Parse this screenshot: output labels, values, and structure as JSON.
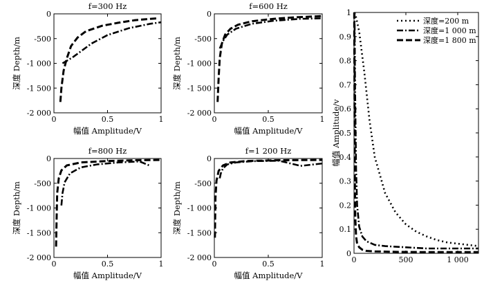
{
  "chart_data": [
    {
      "type": "line",
      "title": "f=300 Hz",
      "xlabel": "幅值 Amplitude/V",
      "ylabel": "深度 Depth/m",
      "xlim": [
        0,
        1
      ],
      "ylim": [
        -2000,
        0
      ],
      "xticks": [
        "0",
        "0.5",
        "1"
      ],
      "yticks": [
        "0",
        "-500",
        "-1 000",
        "-1 500",
        "-2 000"
      ],
      "series": [
        {
          "style": "dash",
          "x": [
            0.06,
            0.07,
            0.09,
            0.12,
            0.16,
            0.22,
            0.3,
            0.45,
            0.6,
            0.75,
            0.9,
            0.98
          ],
          "y": [
            -1780,
            -1500,
            -1150,
            -900,
            -650,
            -480,
            -350,
            -240,
            -180,
            -130,
            -100,
            -90
          ]
        },
        {
          "style": "dashdot",
          "x": [
            0.08,
            0.12,
            0.18,
            0.25,
            0.35,
            0.5,
            0.7,
            0.9,
            1.0
          ],
          "y": [
            -1000,
            -950,
            -870,
            -760,
            -600,
            -430,
            -290,
            -200,
            -170
          ]
        }
      ]
    },
    {
      "type": "line",
      "title": "f=600 Hz",
      "xlabel": "幅值 Amplitude/V",
      "ylabel": "深度 Depth/m",
      "xlim": [
        0,
        1
      ],
      "ylim": [
        -2000,
        0
      ],
      "xticks": [
        "0",
        "0.5",
        "1"
      ],
      "yticks": [
        "0",
        "-500",
        "-1 000",
        "-1 500",
        "-2 000"
      ],
      "series": [
        {
          "style": "dash",
          "x": [
            0.03,
            0.04,
            0.05,
            0.07,
            0.1,
            0.15,
            0.22,
            0.35,
            0.55,
            0.75,
            0.95,
            1.0
          ],
          "y": [
            -1780,
            -1300,
            -900,
            -600,
            -420,
            -300,
            -220,
            -150,
            -100,
            -70,
            -50,
            -45
          ]
        },
        {
          "style": "dashdot",
          "x": [
            0.05,
            0.08,
            0.12,
            0.2,
            0.35,
            0.55,
            0.8,
            1.0
          ],
          "y": [
            -700,
            -550,
            -420,
            -300,
            -200,
            -140,
            -100,
            -90
          ]
        }
      ]
    },
    {
      "type": "line",
      "title": "f=800 Hz",
      "xlabel": "幅值 Amplitude/V",
      "ylabel": "深度 Depth/m",
      "xlim": [
        0,
        1
      ],
      "ylim": [
        -2000,
        0
      ],
      "xticks": [
        "0",
        "0.5",
        "1"
      ],
      "yticks": [
        "0",
        "-500",
        "-1 000",
        "-1 500",
        "-2 000"
      ],
      "series": [
        {
          "style": "dash",
          "x": [
            0.02,
            0.025,
            0.03,
            0.045,
            0.07,
            0.12,
            0.25,
            0.5,
            0.75,
            1.0
          ],
          "y": [
            -1780,
            -1200,
            -700,
            -400,
            -240,
            -140,
            -80,
            -50,
            -35,
            -30
          ]
        },
        {
          "style": "dashdot",
          "x": [
            0.07,
            0.08,
            0.1,
            0.15,
            0.25,
            0.4,
            0.6,
            0.8,
            0.9
          ],
          "y": [
            -950,
            -700,
            -480,
            -300,
            -180,
            -120,
            -80,
            -60,
            -150
          ]
        }
      ]
    },
    {
      "type": "line",
      "title": "f=1 200 Hz",
      "xlabel": "幅值 Amplitude/V",
      "ylabel": "深度 Depth/m",
      "xlim": [
        0,
        1
      ],
      "ylim": [
        -2000,
        0
      ],
      "xticks": [
        "0",
        "0.5",
        "1"
      ],
      "yticks": [
        "0",
        "-500",
        "-1 000",
        "-1 500",
        "-2 000"
      ],
      "series": [
        {
          "style": "dash",
          "x": [
            0.005,
            0.01,
            0.02,
            0.04,
            0.08,
            0.15,
            0.3,
            0.6,
            1.0
          ],
          "y": [
            -1600,
            -800,
            -450,
            -250,
            -140,
            -80,
            -50,
            -35,
            -30
          ]
        },
        {
          "style": "dashdot",
          "x": [
            0.05,
            0.06,
            0.08,
            0.12,
            0.2,
            0.35,
            0.6,
            0.8,
            1.0
          ],
          "y": [
            -400,
            -300,
            -200,
            -120,
            -80,
            -55,
            -45,
            -150,
            -100
          ]
        }
      ]
    },
    {
      "type": "line",
      "title": "",
      "xlabel": "",
      "ylabel": "幅值 Amplitude/v",
      "xlim": [
        0,
        1200
      ],
      "ylim": [
        0,
        1
      ],
      "xticks": [
        "0",
        "500",
        "1 000"
      ],
      "yticks": [
        "0",
        "0.1",
        "0.2",
        "0.3",
        "0.4",
        "0.5",
        "0.6",
        "0.7",
        "0.8",
        "0.9",
        "1"
      ],
      "legend_position": "top-right",
      "series": [
        {
          "name": "深度=200 m",
          "style": "dot",
          "x": [
            5,
            20,
            50,
            100,
            150,
            200,
            300,
            400,
            500,
            600,
            700,
            800,
            900,
            1000,
            1100,
            1200
          ],
          "y": [
            1.0,
            0.98,
            0.92,
            0.75,
            0.55,
            0.4,
            0.25,
            0.17,
            0.12,
            0.09,
            0.07,
            0.055,
            0.045,
            0.04,
            0.035,
            0.03
          ]
        },
        {
          "name": "深度=1 000 m",
          "style": "dashdot",
          "x": [
            5,
            10,
            20,
            30,
            50,
            80,
            120,
            200,
            300,
            500,
            700,
            900,
            1100,
            1200
          ],
          "y": [
            1.0,
            0.7,
            0.35,
            0.2,
            0.11,
            0.07,
            0.05,
            0.035,
            0.03,
            0.025,
            0.02,
            0.02,
            0.02,
            0.02
          ]
        },
        {
          "name": "深度=1 800 m",
          "style": "dash",
          "x": [
            2,
            5,
            8,
            12,
            20,
            30,
            50,
            80,
            120,
            200,
            400,
            700,
            1000,
            1200
          ],
          "y": [
            1.0,
            0.6,
            0.3,
            0.15,
            0.07,
            0.04,
            0.025,
            0.015,
            0.01,
            0.008,
            0.006,
            0.005,
            0.005,
            0.005
          ]
        }
      ]
    }
  ]
}
